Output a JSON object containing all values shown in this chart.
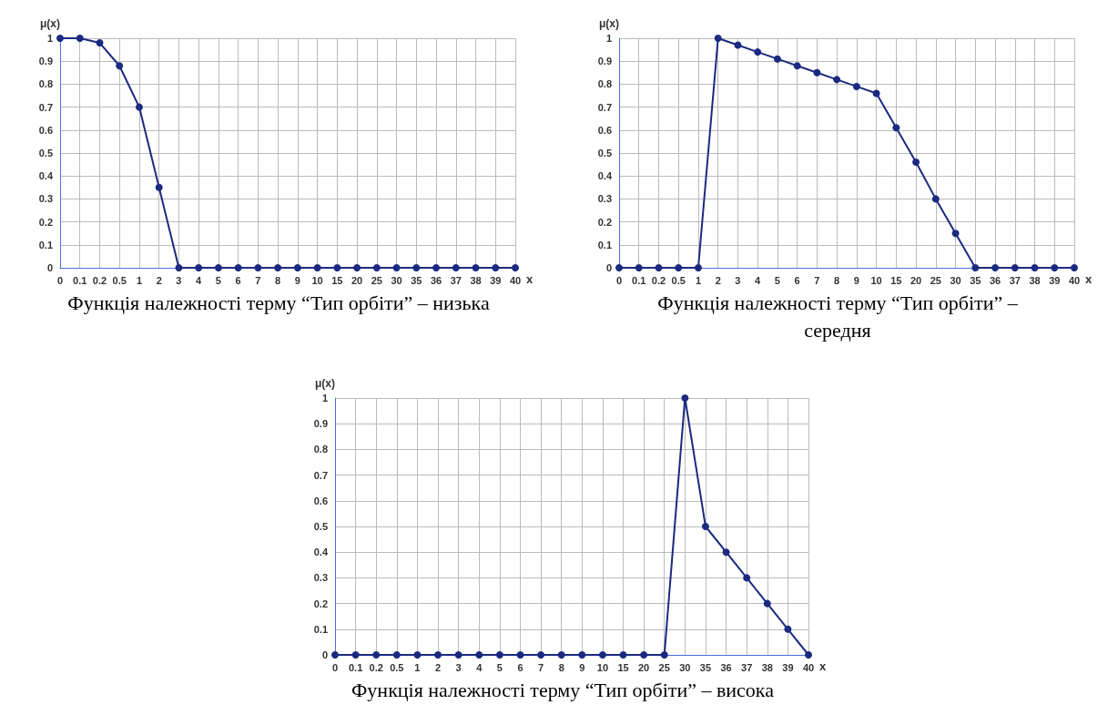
{
  "chart_data": [
    {
      "type": "line",
      "title": "Функція належності терму “Тип орбіти” – низька",
      "xlabel": "x",
      "ylabel": "μ(x)",
      "categories": [
        "0",
        "0.1",
        "0.2",
        "0.5",
        "1",
        "2",
        "3",
        "4",
        "5",
        "6",
        "7",
        "8",
        "9",
        "10",
        "15",
        "20",
        "25",
        "30",
        "35",
        "36",
        "37",
        "38",
        "39",
        "40"
      ],
      "ylim": [
        0,
        1
      ],
      "yticks": [
        0,
        0.1,
        0.2,
        0.3,
        0.4,
        0.5,
        0.6,
        0.7,
        0.8,
        0.9,
        1
      ],
      "grid": true,
      "marker": "circle",
      "line_style": "solid",
      "series": [
        {
          "color": "#1b2a80",
          "values": [
            1,
            1,
            0.98,
            0.88,
            0.7,
            0.35,
            0,
            0,
            0,
            0,
            0,
            0,
            0,
            0,
            0,
            0,
            0,
            0,
            0,
            0,
            0,
            0,
            0,
            0
          ]
        }
      ]
    },
    {
      "type": "line",
      "title": "Функція належності терму “Тип орбіти” – середня",
      "xlabel": "x",
      "ylabel": "μ(x)",
      "categories": [
        "0",
        "0.1",
        "0.2",
        "0.5",
        "1",
        "2",
        "3",
        "4",
        "5",
        "6",
        "7",
        "8",
        "9",
        "10",
        "15",
        "20",
        "25",
        "30",
        "35",
        "36",
        "37",
        "38",
        "39",
        "40"
      ],
      "ylim": [
        0,
        1
      ],
      "yticks": [
        0,
        0.1,
        0.2,
        0.3,
        0.4,
        0.5,
        0.6,
        0.7,
        0.8,
        0.9,
        1
      ],
      "grid": true,
      "marker": "circle",
      "line_style": "solid",
      "series": [
        {
          "color": "#1b2a80",
          "values": [
            0,
            0,
            0,
            0,
            0,
            1,
            0.97,
            0.94,
            0.91,
            0.88,
            0.85,
            0.82,
            0.79,
            0.76,
            0.61,
            0.46,
            0.3,
            0.15,
            0,
            0,
            0,
            0,
            0,
            0
          ]
        }
      ]
    },
    {
      "type": "line",
      "title": "Функція належності терму “Тип орбіти” – висока",
      "xlabel": "x",
      "ylabel": "μ(x)",
      "categories": [
        "0",
        "0.1",
        "0.2",
        "0.5",
        "1",
        "2",
        "3",
        "4",
        "5",
        "6",
        "7",
        "8",
        "9",
        "10",
        "15",
        "20",
        "25",
        "30",
        "35",
        "36",
        "37",
        "38",
        "39",
        "40"
      ],
      "ylim": [
        0,
        1
      ],
      "yticks": [
        0,
        0.1,
        0.2,
        0.3,
        0.4,
        0.5,
        0.6,
        0.7,
        0.8,
        0.9,
        1
      ],
      "grid": true,
      "marker": "circle",
      "line_style": "solid",
      "series": [
        {
          "color": "#1b2a80",
          "values": [
            0,
            0,
            0,
            0,
            0,
            0,
            0,
            0,
            0,
            0,
            0,
            0,
            0,
            0,
            0,
            0,
            0,
            1,
            0.5,
            0.4,
            0.3,
            0.2,
            0.1,
            0
          ]
        }
      ]
    }
  ]
}
